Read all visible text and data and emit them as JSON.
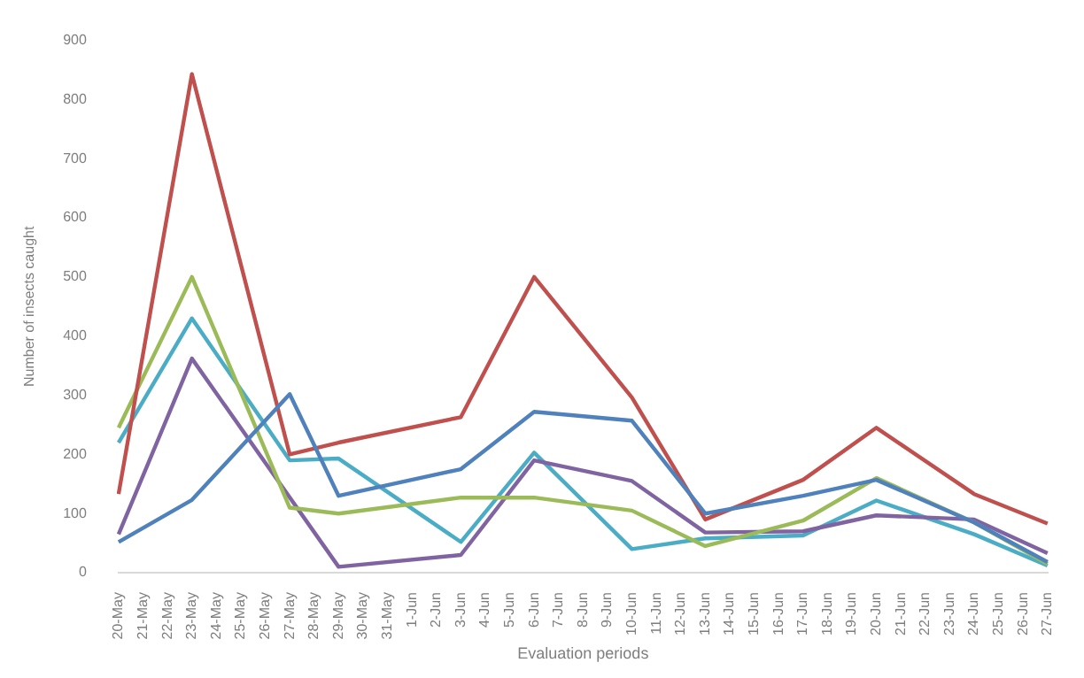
{
  "chart_data": {
    "type": "line",
    "xlabel": "Evaluation periods",
    "ylabel": "Number of insects caught",
    "categories": [
      "20-May",
      "21-May",
      "22-May",
      "23-May",
      "24-May",
      "25-May",
      "26-May",
      "27-May",
      "28-May",
      "29-May",
      "30-May",
      "31-May",
      "1-Jun",
      "2-Jun",
      "3-Jun",
      "4-Jun",
      "5-Jun",
      "6-Jun",
      "7-Jun",
      "8-Jun",
      "9-Jun",
      "10-Jun",
      "11-Jun",
      "12-Jun",
      "13-Jun",
      "14-Jun",
      "15-Jun",
      "16-Jun",
      "17-Jun",
      "18-Jun",
      "19-Jun",
      "20-Jun",
      "21-Jun",
      "22-Jun",
      "23-Jun",
      "24-Jun",
      "25-Jun",
      "26-Jun",
      "27-Jun"
    ],
    "series": [
      {
        "color": "#4f81bd",
        "values": [
          52,
          null,
          null,
          123,
          null,
          null,
          null,
          302,
          null,
          130,
          null,
          null,
          null,
          null,
          175,
          null,
          null,
          272,
          null,
          null,
          null,
          257,
          null,
          null,
          100,
          null,
          null,
          null,
          130,
          null,
          null,
          157,
          null,
          null,
          null,
          85,
          null,
          null,
          18
        ]
      },
      {
        "color": "#c0504d",
        "values": [
          133,
          null,
          null,
          843,
          null,
          null,
          null,
          200,
          null,
          220,
          null,
          null,
          null,
          null,
          263,
          null,
          null,
          500,
          null,
          null,
          null,
          296,
          null,
          null,
          90,
          null,
          null,
          null,
          157,
          null,
          null,
          245,
          null,
          null,
          null,
          133,
          null,
          null,
          83
        ]
      },
      {
        "color": "#9bbb59",
        "values": [
          245,
          null,
          null,
          500,
          null,
          null,
          null,
          110,
          null,
          100,
          null,
          null,
          null,
          null,
          127,
          null,
          null,
          127,
          null,
          null,
          null,
          105,
          null,
          null,
          45,
          null,
          null,
          null,
          88,
          null,
          null,
          160,
          null,
          null,
          null,
          85,
          null,
          null,
          15
        ]
      },
      {
        "color": "#8064a2",
        "values": [
          65,
          null,
          null,
          362,
          null,
          null,
          null,
          null,
          null,
          10,
          null,
          null,
          null,
          null,
          30,
          null,
          null,
          190,
          null,
          null,
          null,
          155,
          null,
          null,
          68,
          null,
          null,
          null,
          70,
          null,
          null,
          97,
          null,
          null,
          null,
          90,
          null,
          null,
          33
        ]
      },
      {
        "color": "#4bacc6",
        "values": [
          220,
          null,
          null,
          430,
          null,
          null,
          null,
          190,
          null,
          193,
          null,
          null,
          null,
          null,
          52,
          null,
          null,
          203,
          null,
          null,
          null,
          40,
          null,
          null,
          58,
          null,
          null,
          null,
          63,
          null,
          null,
          122,
          null,
          null,
          null,
          65,
          null,
          null,
          12
        ]
      }
    ],
    "ylim": [
      0,
      900
    ],
    "yticks": [
      0,
      100,
      200,
      300,
      400,
      500,
      600,
      700,
      800,
      900
    ],
    "grid": false,
    "legend": false,
    "marker": "none",
    "line_style": "solid"
  }
}
